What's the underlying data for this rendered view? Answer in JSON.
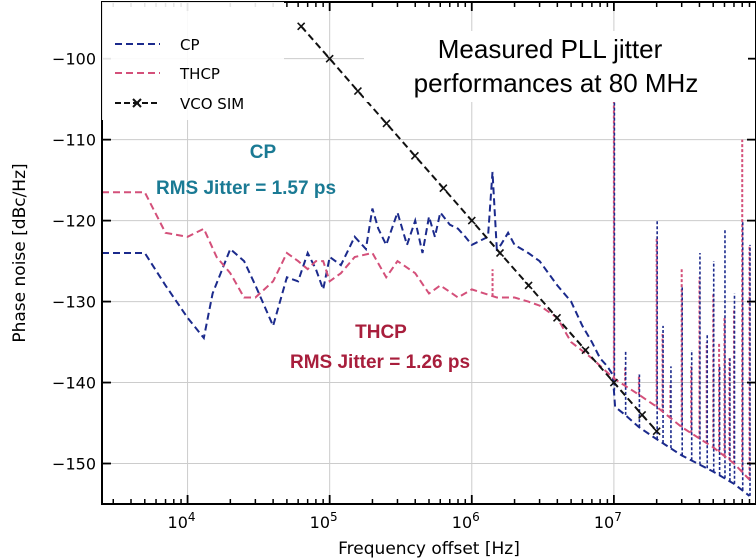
{
  "chart_data": {
    "type": "line",
    "xlabel": "Frequency offset [Hz]",
    "ylabel": "Phase noise [dBc/Hz]",
    "x_scale": "log",
    "xlim": [
      2500,
      100000000
    ],
    "ylim": [
      -155,
      -93
    ],
    "x_ticks": [
      {
        "value": 10000,
        "base": "10",
        "exp": "4"
      },
      {
        "value": 100000,
        "base": "10",
        "exp": "5"
      },
      {
        "value": 1000000,
        "base": "10",
        "exp": "6"
      },
      {
        "value": 10000000,
        "base": "10",
        "exp": "7"
      }
    ],
    "y_ticks": [
      -100,
      -110,
      -120,
      -130,
      -140,
      -150
    ],
    "y_tick_labels": [
      "−100",
      "−110",
      "−120",
      "−130",
      "−140",
      "−150"
    ],
    "grid": true,
    "legend_position": "top-left",
    "colors": {
      "cp": "#1b2a8c",
      "thcp": "#d4507a",
      "vco": "#111111",
      "cp_annot": "#1a7a94",
      "thcp_annot": "#a81e3c"
    },
    "series": [
      {
        "name": "CP",
        "style": "dashed",
        "x": [
          2500,
          5000,
          7000,
          10000,
          13000,
          15000,
          20000,
          25000,
          30000,
          40000,
          50000,
          60000,
          70000,
          80000,
          90000,
          100000,
          120000,
          150000,
          180000,
          200000,
          220000,
          250000,
          300000,
          350000,
          400000,
          450000,
          500000,
          550000,
          600000,
          700000,
          800000,
          900000,
          1000000,
          1300000,
          1400000,
          1500000,
          1600000,
          1800000,
          2000000,
          2500000,
          3000000,
          4000000,
          5000000,
          6000000,
          7000000,
          8000000,
          9000000,
          9800000,
          10000000,
          10200000,
          12000000,
          15000000,
          20000000,
          30000000,
          50000000,
          70000000,
          90000000
        ],
        "y": [
          -124,
          -124,
          -128,
          -132,
          -134.5,
          -129,
          -123.5,
          -125,
          -128,
          -133,
          -127,
          -127.5,
          -124,
          -126,
          -128.5,
          -124.5,
          -125.5,
          -122,
          -123.5,
          -118.5,
          -121,
          -123,
          -119,
          -123,
          -120,
          -124,
          -119.5,
          -122,
          -119,
          -120.5,
          -121,
          -122,
          -123,
          -122,
          -114,
          -123.5,
          -123,
          -121.5,
          -123,
          -124,
          -125,
          -128,
          -130,
          -133,
          -135,
          -137,
          -138,
          -139,
          -141,
          -143,
          -144,
          -145.5,
          -147,
          -149,
          -151,
          -152.5,
          -154
        ]
      },
      {
        "name": "THCP",
        "style": "dashed",
        "x": [
          2500,
          5000,
          7000,
          10000,
          13000,
          16000,
          20000,
          25000,
          30000,
          40000,
          50000,
          60000,
          70000,
          80000,
          90000,
          100000,
          120000,
          150000,
          200000,
          250000,
          300000,
          400000,
          500000,
          600000,
          800000,
          1000000,
          1500000,
          2000000,
          2500000,
          3000000,
          4000000,
          5000000,
          7000000,
          10000000,
          15000000,
          20000000,
          30000000,
          50000000,
          70000000,
          90000000
        ],
        "y": [
          -116.5,
          -116.5,
          -121.5,
          -122,
          -121,
          -124.5,
          -126.5,
          -129.5,
          -129.5,
          -127.5,
          -124,
          -125,
          -126,
          -125,
          -125,
          -127.5,
          -126.5,
          -124.5,
          -124,
          -127,
          -125,
          -126.5,
          -129,
          -128,
          -129.5,
          -128.5,
          -129.5,
          -129.5,
          -130,
          -130.5,
          -132,
          -135,
          -137,
          -139.5,
          -141.5,
          -143,
          -145.5,
          -148,
          -150,
          -152
        ]
      },
      {
        "name": "VCO SIM",
        "style": "dashed-x",
        "x": [
          63000,
          100000,
          158000,
          251000,
          398000,
          631000,
          1000000,
          1580000,
          2510000,
          3980000,
          6310000,
          10000000,
          15800000,
          20000000
        ],
        "y": [
          -96,
          -100,
          -104,
          -108,
          -112,
          -116,
          -120,
          -124,
          -128,
          -132,
          -136,
          -140,
          -144,
          -146
        ]
      }
    ],
    "spurs": [
      {
        "freq": 1400000,
        "cp_peak": -114,
        "thcp_peak": -126
      },
      {
        "freq": 10000000,
        "cp_peak": -105,
        "thcp_peak": -104
      },
      {
        "freq": 12000000,
        "cp_peak": -136,
        "thcp_peak": -138
      },
      {
        "freq": 15000000,
        "cp_peak": -139,
        "thcp_peak": -139
      },
      {
        "freq": 20000000,
        "cp_peak": -120,
        "thcp_peak": -122
      },
      {
        "freq": 22000000,
        "cp_peak": -133,
        "thcp_peak": -134
      },
      {
        "freq": 25000000,
        "cp_peak": -138,
        "thcp_peak": -140
      },
      {
        "freq": 30000000,
        "cp_peak": -128,
        "thcp_peak": -126
      },
      {
        "freq": 35000000,
        "cp_peak": -136,
        "thcp_peak": -138
      },
      {
        "freq": 40000000,
        "cp_peak": -124,
        "thcp_peak": -127
      },
      {
        "freq": 45000000,
        "cp_peak": -134,
        "thcp_peak": -135
      },
      {
        "freq": 50000000,
        "cp_peak": -125,
        "thcp_peak": -129
      },
      {
        "freq": 55000000,
        "cp_peak": -138,
        "thcp_peak": -135
      },
      {
        "freq": 60000000,
        "cp_peak": -121,
        "thcp_peak": -132
      },
      {
        "freq": 65000000,
        "cp_peak": -137,
        "thcp_peak": -137
      },
      {
        "freq": 70000000,
        "cp_peak": -129,
        "thcp_peak": -131
      },
      {
        "freq": 80000000,
        "cp_peak": -120,
        "thcp_peak": -110
      },
      {
        "freq": 90000000,
        "cp_peak": -123,
        "thcp_peak": -123
      }
    ],
    "annotations": {
      "title_line1": "Measured PLL jitter",
      "title_line2": "performances at 80 MHz",
      "cp_label": "CP",
      "cp_jitter": "RMS Jitter = 1.57 ps",
      "thcp_label": "THCP",
      "thcp_jitter": "RMS Jitter = 1.26 ps"
    }
  }
}
